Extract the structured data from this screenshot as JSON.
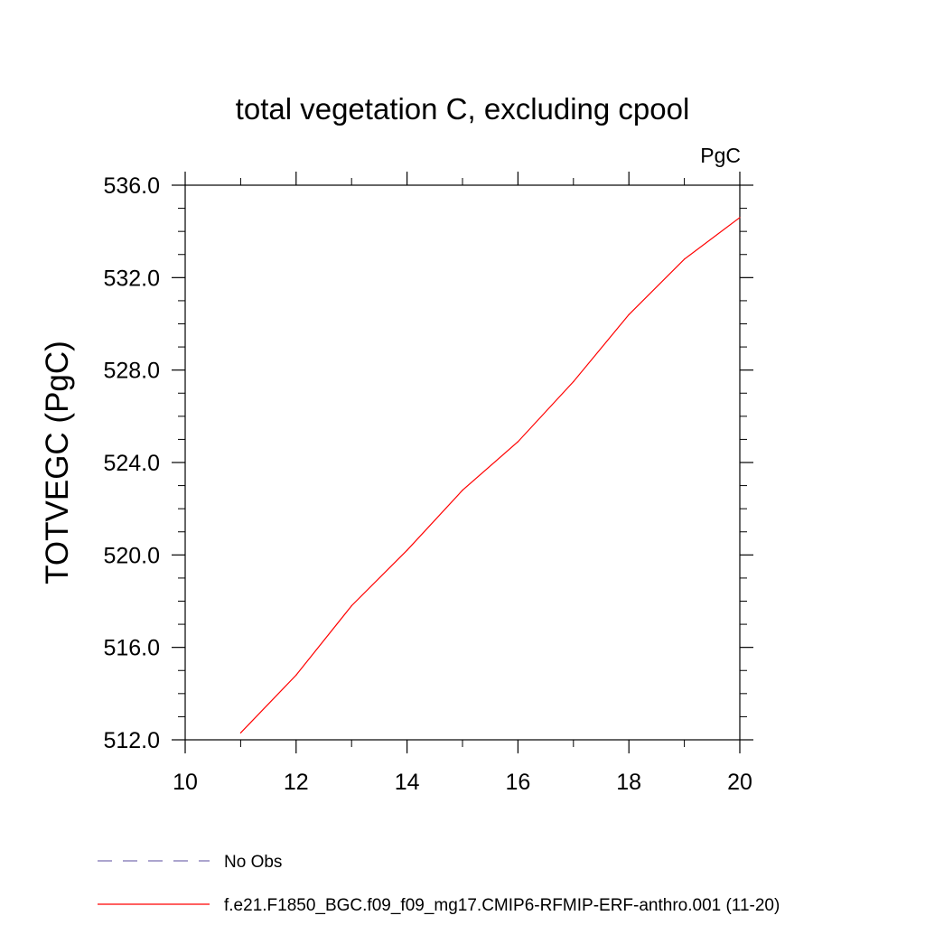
{
  "chart_data": {
    "type": "line",
    "title": "total vegetation C, excluding cpool",
    "units_label": "PgC",
    "xlabel": "",
    "ylabel": "TOTVEGC  (PgC)",
    "xlim": [
      10,
      20
    ],
    "ylim": [
      512.0,
      536.0
    ],
    "x_ticks": [
      10,
      12,
      14,
      16,
      18,
      20
    ],
    "x_tick_labels": [
      "10",
      "12",
      "14",
      "16",
      "18",
      "20"
    ],
    "y_ticks": [
      512.0,
      516.0,
      520.0,
      524.0,
      528.0,
      532.0,
      536.0
    ],
    "y_tick_labels": [
      "512.0",
      "516.0",
      "520.0",
      "524.0",
      "528.0",
      "532.0",
      "536.0"
    ],
    "x_minor_step": 1,
    "y_minor_step": 1,
    "grid": false,
    "series": [
      {
        "name": "f.e21.F1850_BGC.f09_f09_mg17.CMIP6-RFMIP-ERF-anthro.001 (11-20)",
        "color": "#ff0000",
        "style": "solid",
        "x": [
          11,
          12,
          13,
          14,
          15,
          16,
          17,
          18,
          19,
          20
        ],
        "y": [
          512.3,
          514.8,
          517.8,
          520.2,
          522.8,
          524.9,
          527.5,
          530.4,
          532.8,
          534.6
        ]
      }
    ],
    "legend": {
      "placement": "bottom",
      "entries": [
        {
          "label": "No Obs",
          "color": "#7a6fb0",
          "style": "dashed"
        },
        {
          "label": "f.e21.F1850_BGC.f09_f09_mg17.CMIP6-RFMIP-ERF-anthro.001 (11-20)",
          "color": "#ff0000",
          "style": "solid"
        }
      ]
    }
  }
}
